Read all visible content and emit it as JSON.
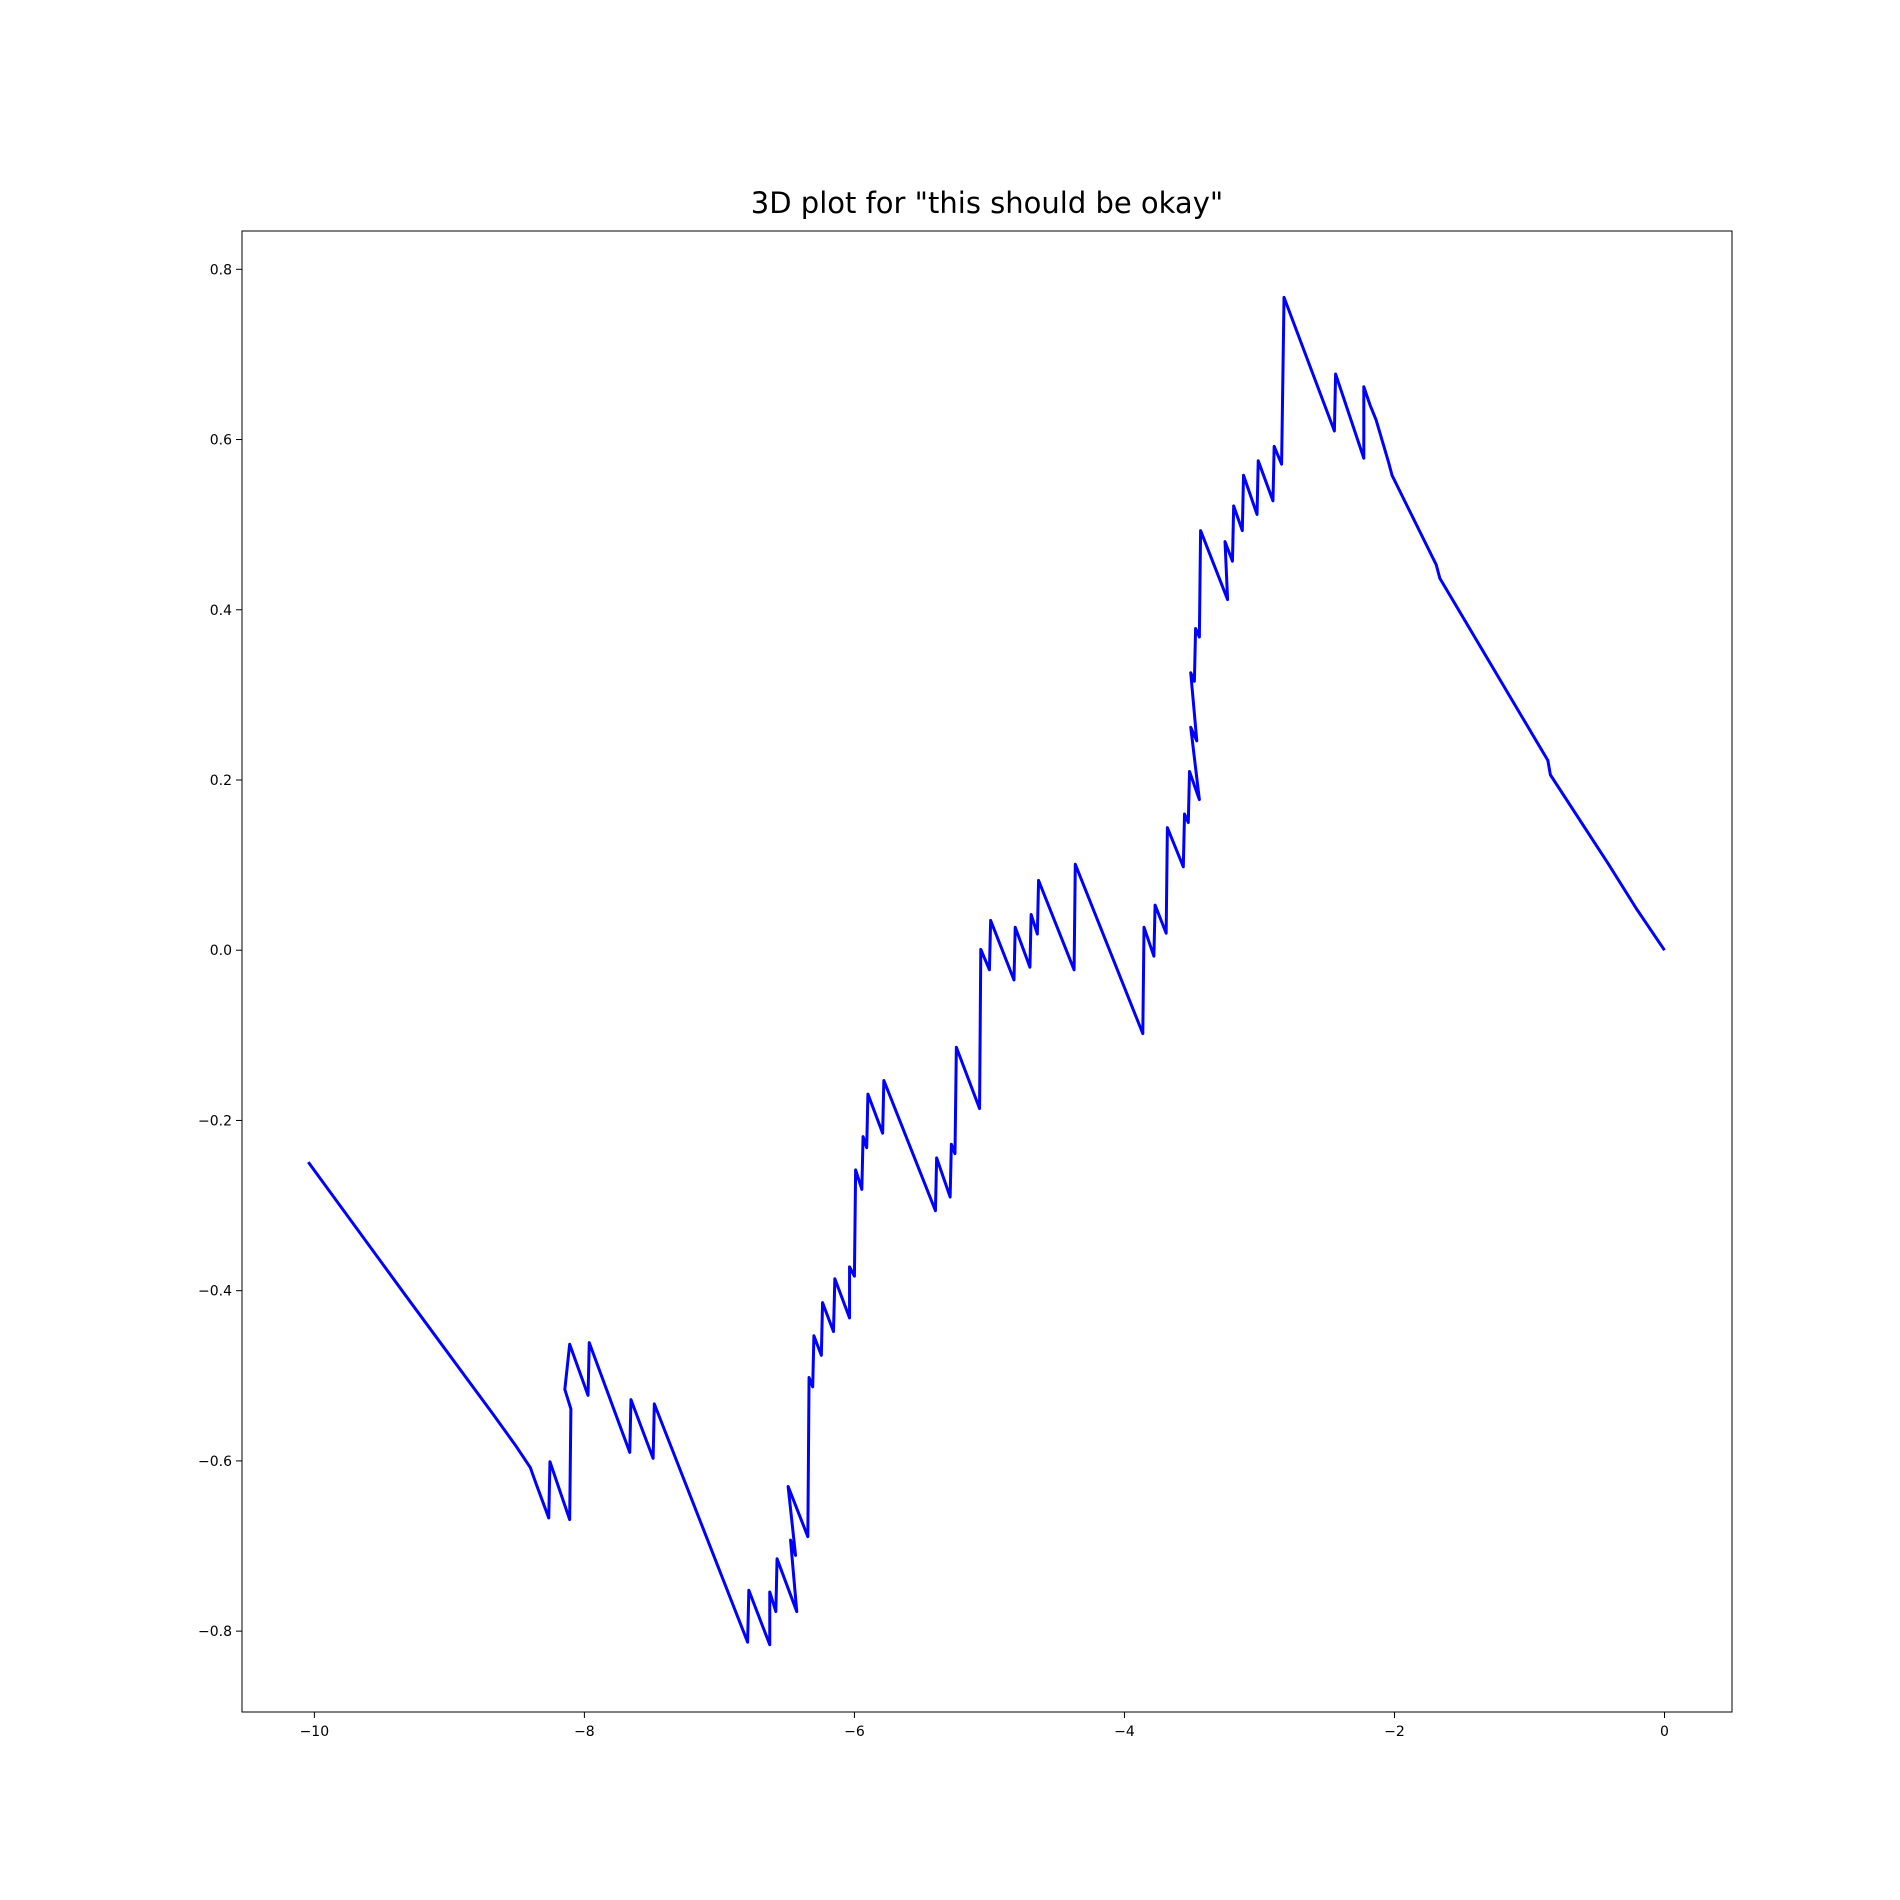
{
  "chart_data": {
    "type": "line",
    "title": "3D plot for \"this should be okay\"",
    "x": [
      -10.045,
      -9.327,
      -8.691,
      -8.509,
      -8.4,
      -8.355,
      -8.264,
      -8.255,
      -8.109,
      -8.1,
      -8.145,
      -8.109,
      -7.973,
      -7.964,
      -7.664,
      -7.655,
      -7.491,
      -7.482,
      -6.791,
      -6.782,
      -6.627,
      -6.627,
      -6.582,
      -6.573,
      -6.427,
      -6.473,
      -6.436,
      -6.491,
      -6.345,
      -6.336,
      -6.309,
      -6.3,
      -6.245,
      -6.236,
      -6.155,
      -6.145,
      -6.036,
      -6.036,
      -6.0,
      -5.991,
      -5.945,
      -5.936,
      -5.909,
      -5.9,
      -5.791,
      -5.782,
      -5.4,
      -5.391,
      -5.291,
      -5.282,
      -5.255,
      -5.245,
      -5.073,
      -5.064,
      -5.0,
      -4.991,
      -4.818,
      -4.809,
      -4.7,
      -4.691,
      -4.645,
      -4.636,
      -4.373,
      -4.364,
      -3.864,
      -3.855,
      -3.782,
      -3.773,
      -3.691,
      -3.682,
      -3.564,
      -3.555,
      -3.527,
      -3.518,
      -3.445,
      -3.509,
      -3.464,
      -3.509,
      -3.482,
      -3.473,
      -3.445,
      -3.436,
      -3.236,
      -3.255,
      -3.2,
      -3.191,
      -3.127,
      -3.118,
      -3.018,
      -3.009,
      -2.9,
      -2.891,
      -2.836,
      -2.818,
      -2.445,
      -2.436,
      -2.227,
      -2.227,
      -2.182,
      -2.136,
      -2.045,
      -2.018,
      -1.9,
      -1.691,
      -1.664,
      -0.864,
      -0.845,
      -0.418,
      -0.209,
      0
    ],
    "values": [
      -0.249,
      -0.405,
      -0.542,
      -0.582,
      -0.608,
      -0.628,
      -0.667,
      -0.601,
      -0.669,
      -0.539,
      -0.516,
      -0.463,
      -0.523,
      -0.461,
      -0.59,
      -0.528,
      -0.597,
      -0.533,
      -0.813,
      -0.752,
      -0.816,
      -0.754,
      -0.777,
      -0.715,
      -0.777,
      -0.693,
      -0.711,
      -0.63,
      -0.689,
      -0.502,
      -0.513,
      -0.453,
      -0.476,
      -0.414,
      -0.448,
      -0.386,
      -0.432,
      -0.372,
      -0.383,
      -0.258,
      -0.281,
      -0.219,
      -0.232,
      -0.169,
      -0.215,
      -0.153,
      -0.306,
      -0.244,
      -0.29,
      -0.228,
      -0.239,
      -0.114,
      -0.186,
      0.001,
      -0.023,
      0.035,
      -0.035,
      0.027,
      -0.02,
      0.042,
      0.019,
      0.082,
      -0.023,
      0.101,
      -0.098,
      0.027,
      -0.007,
      0.053,
      0.02,
      0.144,
      0.098,
      0.16,
      0.15,
      0.21,
      0.177,
      0.262,
      0.246,
      0.326,
      0.316,
      0.378,
      0.368,
      0.493,
      0.412,
      0.48,
      0.457,
      0.522,
      0.493,
      0.558,
      0.512,
      0.575,
      0.528,
      0.592,
      0.571,
      0.767,
      0.61,
      0.677,
      0.578,
      0.662,
      0.641,
      0.623,
      0.574,
      0.558,
      0.52,
      0.453,
      0.437,
      0.223,
      0.206,
      0.102,
      0.049,
      0
    ],
    "color": "#0000ff",
    "xlim": [
      -10.536,
      0.5
    ],
    "ylim": [
      -0.895,
      0.845
    ],
    "xticks": [
      {
        "value": -10,
        "label": "−10"
      },
      {
        "value": -8,
        "label": "−8"
      },
      {
        "value": -6,
        "label": "−6"
      },
      {
        "value": -4,
        "label": "−4"
      },
      {
        "value": -2,
        "label": "−2"
      },
      0
    ],
    "yticks": [
      {
        "value": -0.8,
        "label": "−0.8"
      },
      {
        "value": -0.6,
        "label": "−0.6"
      },
      {
        "value": -0.4,
        "label": "−0.4"
      },
      {
        "value": -0.2,
        "label": "−0.2"
      },
      {
        "value": 0,
        "label": "0.0"
      },
      0.2,
      0.4,
      0.6,
      0.8
    ]
  }
}
